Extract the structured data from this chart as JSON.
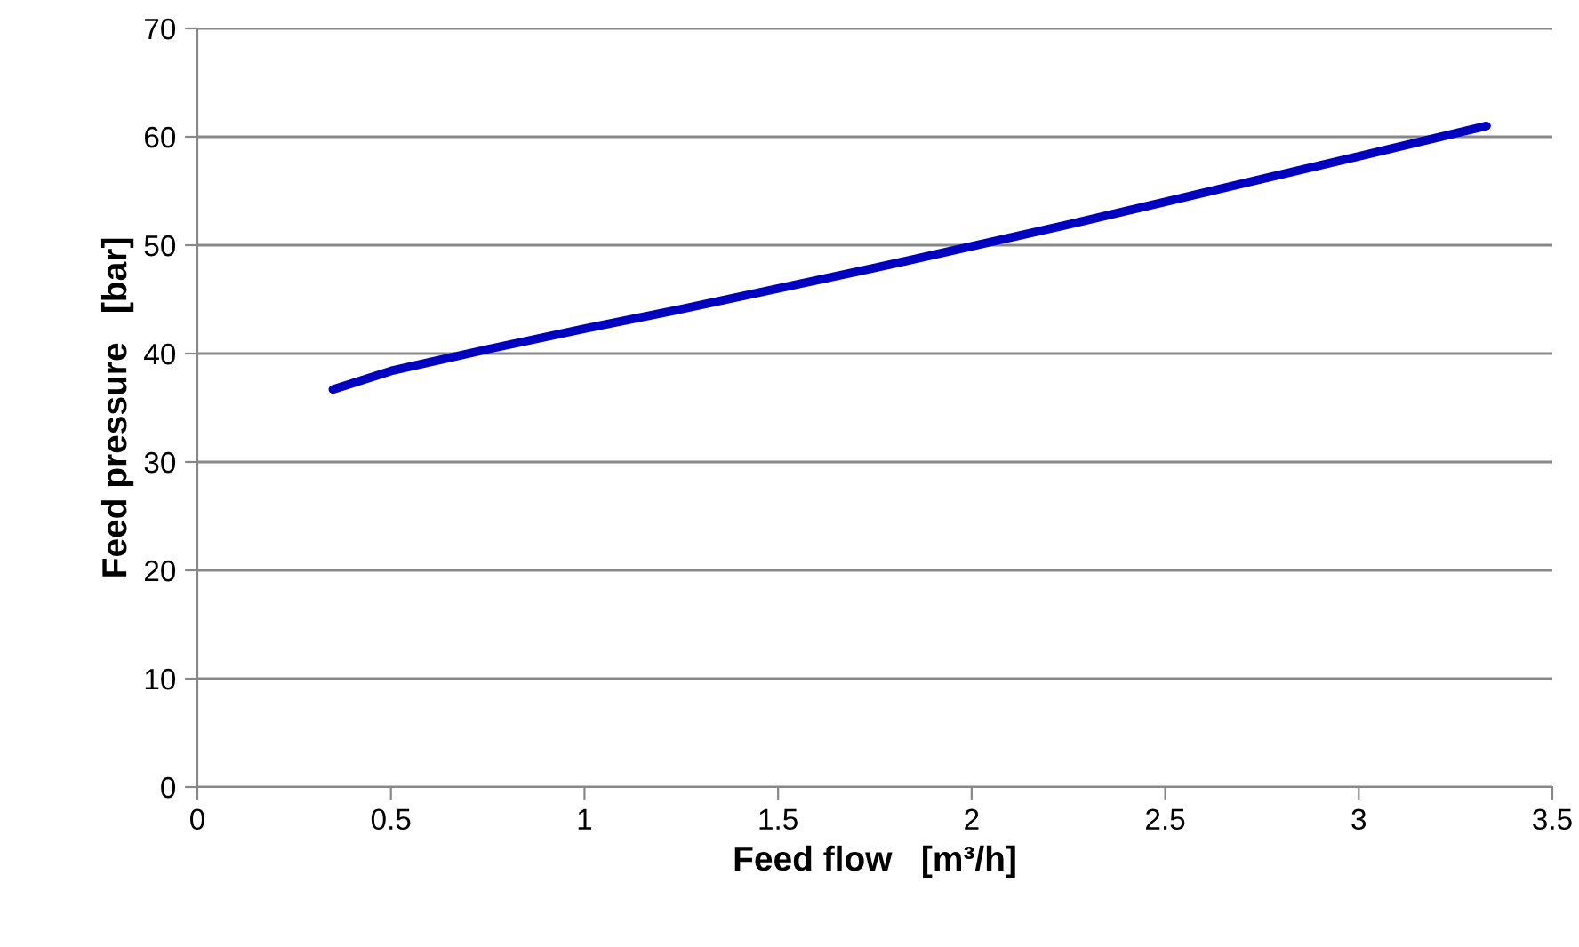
{
  "chart_data": {
    "type": "line",
    "xlabel": "Feed flow   [m³/h]",
    "ylabel": "Feed pressure   [bar]",
    "xlim": [
      0,
      3.5
    ],
    "xticks": [
      0,
      0.5,
      1,
      1.5,
      2,
      2.5,
      3,
      3.5
    ],
    "ylim": [
      0,
      70
    ],
    "yticks": [
      0,
      10,
      20,
      30,
      40,
      50,
      60,
      70
    ],
    "grid": "y",
    "legend": false,
    "marker": "none",
    "line_style": "solid",
    "series": [
      {
        "color": "#0000c0",
        "x": [
          0.35,
          0.5,
          0.75,
          1,
          1.25,
          1.5,
          1.75,
          2,
          2.25,
          2.5,
          2.75,
          3,
          3.33
        ],
        "values": [
          36.7,
          38.4,
          40.4,
          42.3,
          44.1,
          46.0,
          47.9,
          49.9,
          51.9,
          54.0,
          56.1,
          58.2,
          61.0
        ]
      }
    ]
  }
}
